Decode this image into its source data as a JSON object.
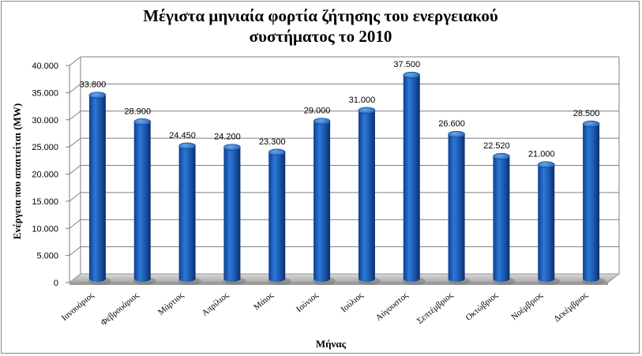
{
  "chart_data": {
    "type": "bar",
    "title_line1": "Μέγιστα μηνιαία φορτία ζήτησης του ενεργειακού",
    "title_line2": "συστήματος το 2010",
    "xlabel": "Μήνας",
    "ylabel": "Ενέργεια που απαιτείται (MW)",
    "ylim": [
      0,
      40000
    ],
    "yticks": [
      "0",
      "5.000",
      "10.000",
      "15.000",
      "20.000",
      "25.000",
      "30.000",
      "35.000",
      "40.000"
    ],
    "grid": true,
    "bar_color": "#1f5fb8",
    "categories": [
      "Ιανουάριος",
      "Φεβρουάριος",
      "Μάρτιος",
      "Απρίλιος",
      "Μάιος",
      "Ιούνιος",
      "Ιούλιος",
      "Αύγουστος",
      "Σεπτέμβριος",
      "Οκτώβριος",
      "Νοέμβριος",
      "Δεκέμβριος"
    ],
    "values": [
      33800,
      28900,
      24450,
      24200,
      23300,
      29000,
      31000,
      37500,
      26600,
      22520,
      21000,
      28500
    ],
    "data_labels": [
      "33.800",
      "28.900",
      "24.450",
      "24.200",
      "23.300",
      "29.000",
      "31.000",
      "37.500",
      "26.600",
      "22.520",
      "21.000",
      "28.500"
    ]
  }
}
